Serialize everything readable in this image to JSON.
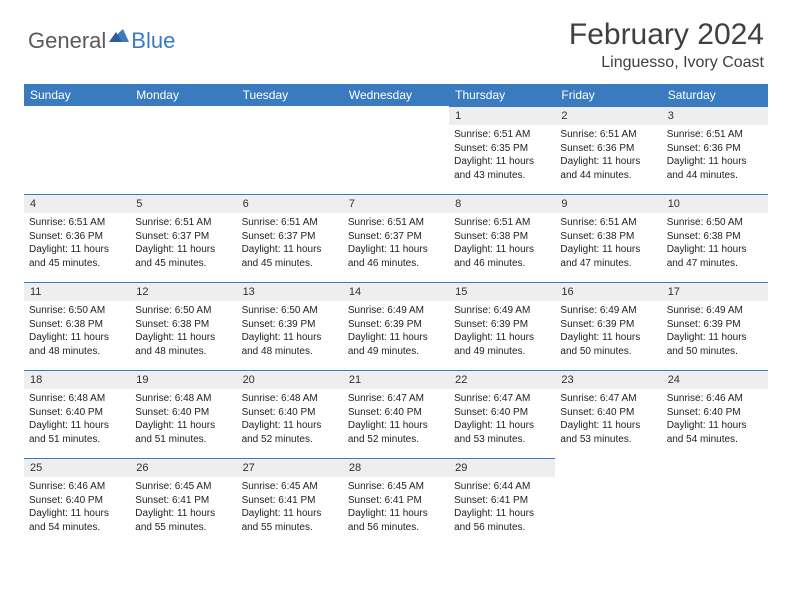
{
  "brand": {
    "part1": "General",
    "part2": "Blue",
    "icon_color": "#3a7bbf"
  },
  "title": "February 2024",
  "location": "Linguesso, Ivory Coast",
  "header_bg": "#3a7bbf",
  "header_fg": "#ffffff",
  "daynum_bg": "#eeeeee",
  "border_color": "#3a7bbf",
  "weekdays": [
    "Sunday",
    "Monday",
    "Tuesday",
    "Wednesday",
    "Thursday",
    "Friday",
    "Saturday"
  ],
  "weeks": [
    [
      null,
      null,
      null,
      null,
      {
        "n": "1",
        "sunrise": "6:51 AM",
        "sunset": "6:35 PM",
        "daylight": "11 hours and 43 minutes."
      },
      {
        "n": "2",
        "sunrise": "6:51 AM",
        "sunset": "6:36 PM",
        "daylight": "11 hours and 44 minutes."
      },
      {
        "n": "3",
        "sunrise": "6:51 AM",
        "sunset": "6:36 PM",
        "daylight": "11 hours and 44 minutes."
      }
    ],
    [
      {
        "n": "4",
        "sunrise": "6:51 AM",
        "sunset": "6:36 PM",
        "daylight": "11 hours and 45 minutes."
      },
      {
        "n": "5",
        "sunrise": "6:51 AM",
        "sunset": "6:37 PM",
        "daylight": "11 hours and 45 minutes."
      },
      {
        "n": "6",
        "sunrise": "6:51 AM",
        "sunset": "6:37 PM",
        "daylight": "11 hours and 45 minutes."
      },
      {
        "n": "7",
        "sunrise": "6:51 AM",
        "sunset": "6:37 PM",
        "daylight": "11 hours and 46 minutes."
      },
      {
        "n": "8",
        "sunrise": "6:51 AM",
        "sunset": "6:38 PM",
        "daylight": "11 hours and 46 minutes."
      },
      {
        "n": "9",
        "sunrise": "6:51 AM",
        "sunset": "6:38 PM",
        "daylight": "11 hours and 47 minutes."
      },
      {
        "n": "10",
        "sunrise": "6:50 AM",
        "sunset": "6:38 PM",
        "daylight": "11 hours and 47 minutes."
      }
    ],
    [
      {
        "n": "11",
        "sunrise": "6:50 AM",
        "sunset": "6:38 PM",
        "daylight": "11 hours and 48 minutes."
      },
      {
        "n": "12",
        "sunrise": "6:50 AM",
        "sunset": "6:38 PM",
        "daylight": "11 hours and 48 minutes."
      },
      {
        "n": "13",
        "sunrise": "6:50 AM",
        "sunset": "6:39 PM",
        "daylight": "11 hours and 48 minutes."
      },
      {
        "n": "14",
        "sunrise": "6:49 AM",
        "sunset": "6:39 PM",
        "daylight": "11 hours and 49 minutes."
      },
      {
        "n": "15",
        "sunrise": "6:49 AM",
        "sunset": "6:39 PM",
        "daylight": "11 hours and 49 minutes."
      },
      {
        "n": "16",
        "sunrise": "6:49 AM",
        "sunset": "6:39 PM",
        "daylight": "11 hours and 50 minutes."
      },
      {
        "n": "17",
        "sunrise": "6:49 AM",
        "sunset": "6:39 PM",
        "daylight": "11 hours and 50 minutes."
      }
    ],
    [
      {
        "n": "18",
        "sunrise": "6:48 AM",
        "sunset": "6:40 PM",
        "daylight": "11 hours and 51 minutes."
      },
      {
        "n": "19",
        "sunrise": "6:48 AM",
        "sunset": "6:40 PM",
        "daylight": "11 hours and 51 minutes."
      },
      {
        "n": "20",
        "sunrise": "6:48 AM",
        "sunset": "6:40 PM",
        "daylight": "11 hours and 52 minutes."
      },
      {
        "n": "21",
        "sunrise": "6:47 AM",
        "sunset": "6:40 PM",
        "daylight": "11 hours and 52 minutes."
      },
      {
        "n": "22",
        "sunrise": "6:47 AM",
        "sunset": "6:40 PM",
        "daylight": "11 hours and 53 minutes."
      },
      {
        "n": "23",
        "sunrise": "6:47 AM",
        "sunset": "6:40 PM",
        "daylight": "11 hours and 53 minutes."
      },
      {
        "n": "24",
        "sunrise": "6:46 AM",
        "sunset": "6:40 PM",
        "daylight": "11 hours and 54 minutes."
      }
    ],
    [
      {
        "n": "25",
        "sunrise": "6:46 AM",
        "sunset": "6:40 PM",
        "daylight": "11 hours and 54 minutes."
      },
      {
        "n": "26",
        "sunrise": "6:45 AM",
        "sunset": "6:41 PM",
        "daylight": "11 hours and 55 minutes."
      },
      {
        "n": "27",
        "sunrise": "6:45 AM",
        "sunset": "6:41 PM",
        "daylight": "11 hours and 55 minutes."
      },
      {
        "n": "28",
        "sunrise": "6:45 AM",
        "sunset": "6:41 PM",
        "daylight": "11 hours and 56 minutes."
      },
      {
        "n": "29",
        "sunrise": "6:44 AM",
        "sunset": "6:41 PM",
        "daylight": "11 hours and 56 minutes."
      },
      null,
      null
    ]
  ],
  "labels": {
    "sunrise": "Sunrise:",
    "sunset": "Sunset:",
    "daylight": "Daylight:"
  }
}
